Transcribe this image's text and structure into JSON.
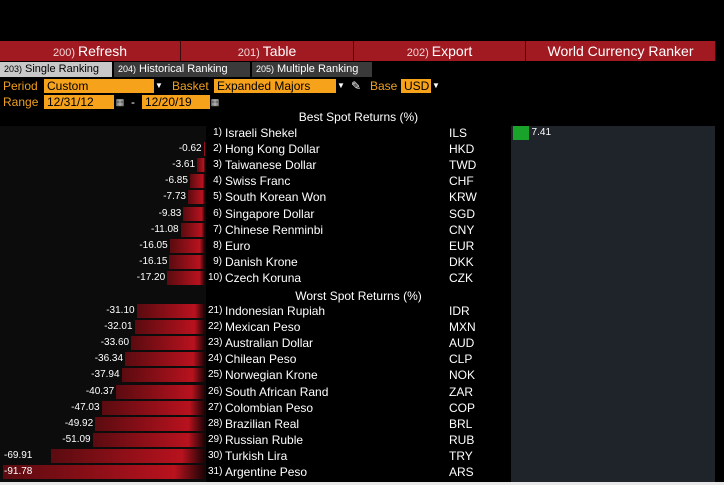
{
  "menu": [
    {
      "num": "200)",
      "label": "Refresh"
    },
    {
      "num": "201)",
      "label": "Table"
    },
    {
      "num": "202)",
      "label": "Export"
    },
    {
      "num": "",
      "label": "World Currency Ranker"
    }
  ],
  "tabs": [
    {
      "num": "203)",
      "label": "Single Ranking"
    },
    {
      "num": "204)",
      "label": "Historical Ranking"
    },
    {
      "num": "205)",
      "label": "Multiple Ranking"
    }
  ],
  "filters": {
    "period_label": "Period",
    "period_value": "Custom",
    "basket_label": "Basket",
    "basket_value": "Expanded Majors",
    "base_label": "Base",
    "base_value": "USD",
    "range_label": "Range",
    "range_start": "12/31/12",
    "range_sep": "-",
    "range_end": "12/20/19"
  },
  "best_title": "Best Spot Returns (%)",
  "worst_title": "Worst Spot Returns (%)",
  "best": [
    {
      "rank": "1)",
      "name": "Israeli Shekel",
      "code": "ILS",
      "value": "7.41"
    },
    {
      "rank": "2)",
      "name": "Hong Kong Dollar",
      "code": "HKD",
      "value": "-0.62"
    },
    {
      "rank": "3)",
      "name": "Taiwanese Dollar",
      "code": "TWD",
      "value": "-3.61"
    },
    {
      "rank": "4)",
      "name": "Swiss Franc",
      "code": "CHF",
      "value": "-6.85"
    },
    {
      "rank": "5)",
      "name": "South Korean Won",
      "code": "KRW",
      "value": "-7.73"
    },
    {
      "rank": "6)",
      "name": "Singapore Dollar",
      "code": "SGD",
      "value": "-9.83"
    },
    {
      "rank": "7)",
      "name": "Chinese Renminbi",
      "code": "CNY",
      "value": "-11.08"
    },
    {
      "rank": "8)",
      "name": "Euro",
      "code": "EUR",
      "value": "-16.05"
    },
    {
      "rank": "9)",
      "name": "Danish Krone",
      "code": "DKK",
      "value": "-16.15"
    },
    {
      "rank": "10)",
      "name": "Czech Koruna",
      "code": "CZK",
      "value": "-17.20"
    }
  ],
  "worst": [
    {
      "rank": "21)",
      "name": "Indonesian Rupiah",
      "code": "IDR",
      "value": "-31.10"
    },
    {
      "rank": "22)",
      "name": "Mexican Peso",
      "code": "MXN",
      "value": "-32.01"
    },
    {
      "rank": "23)",
      "name": "Australian Dollar",
      "code": "AUD",
      "value": "-33.60"
    },
    {
      "rank": "24)",
      "name": "Chilean Peso",
      "code": "CLP",
      "value": "-36.34"
    },
    {
      "rank": "25)",
      "name": "Norwegian Krone",
      "code": "NOK",
      "value": "-37.94"
    },
    {
      "rank": "26)",
      "name": "South African Rand",
      "code": "ZAR",
      "value": "-40.37"
    },
    {
      "rank": "27)",
      "name": "Colombian Peso",
      "code": "COP",
      "value": "-47.03"
    },
    {
      "rank": "28)",
      "name": "Brazilian Real",
      "code": "BRL",
      "value": "-49.92"
    },
    {
      "rank": "29)",
      "name": "Russian Ruble",
      "code": "RUB",
      "value": "-51.09"
    },
    {
      "rank": "30)",
      "name": "Turkish Lira",
      "code": "TRY",
      "value": "-69.91"
    },
    {
      "rank": "31)",
      "name": "Argentine Peso",
      "code": "ARS",
      "value": "-91.78"
    }
  ],
  "colors": {
    "menu_red": "#a11a22",
    "field_orange": "#f7a21b",
    "label_orange": "#f0a020",
    "neg_bar": "#b8121e",
    "pos_bar": "#1aa32a"
  }
}
